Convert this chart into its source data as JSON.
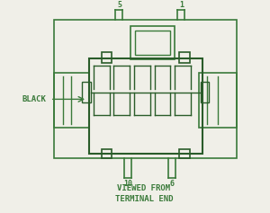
{
  "bg_color": "#f0efe8",
  "line_color": "#3a7a3a",
  "dark_line_color": "#2a5c2a",
  "text_color": "#3a7a3a",
  "title": "VIEWED FROM\nTERMINAL END",
  "label_black": "BLACK",
  "label_5": "5",
  "label_1": "1",
  "label_10": "10",
  "label_6": "6",
  "figsize": [
    3.0,
    2.37
  ],
  "dpi": 100
}
